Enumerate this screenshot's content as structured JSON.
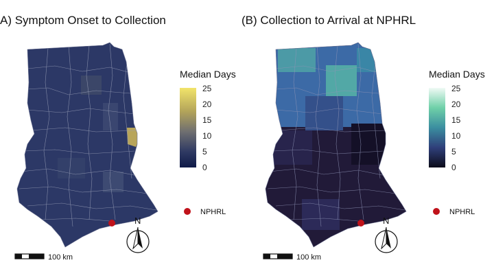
{
  "panel_a": {
    "title": "A) Symptom Onset to Collection",
    "legend": {
      "title": "Median Days",
      "ticks": [
        "25",
        "20",
        "15",
        "10",
        "5",
        "0"
      ],
      "colors": [
        "#f2e46a",
        "#b2a35a",
        "#6f6f70",
        "#3e4a6a",
        "#232d5a",
        "#0f1a48"
      ]
    },
    "lab_label": "NPHRL",
    "north_label": "N",
    "scale_label": "100 km",
    "base_color": "#2c3866",
    "highlight_color": "#b8a55a"
  },
  "panel_b": {
    "title": "(B) Collection to Arrival at NPHRL",
    "legend": {
      "title": "Median Days",
      "ticks": [
        "25",
        "20",
        "15",
        "10",
        "5",
        "0"
      ],
      "colors": [
        "#f0faf5",
        "#6fd0a8",
        "#3b8ea0",
        "#2f5b8e",
        "#2a2f5e",
        "#0c0c1a"
      ]
    },
    "lab_label": "NPHRL",
    "north_label": "N",
    "scale_label": "100 km",
    "north_color": "#3c6aa6",
    "south_color": "#211a38"
  },
  "lab_color": "#c0121a"
}
